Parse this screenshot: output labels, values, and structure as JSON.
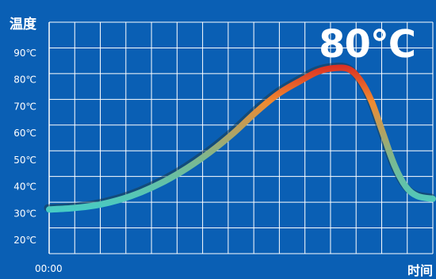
{
  "header": {
    "current_temperature": "80℃"
  },
  "chart_data": {
    "type": "line",
    "title": "",
    "xlabel": "时间",
    "ylabel": "温度",
    "x_start_label": "00:00",
    "y_ticks": [
      "20℃",
      "30℃",
      "40℃",
      "50℃",
      "60℃",
      "70℃",
      "80℃",
      "90℃"
    ],
    "y_tick_values": [
      20,
      30,
      40,
      50,
      60,
      70,
      80,
      90
    ],
    "ylim": [
      20,
      95
    ],
    "grid": true,
    "series": [
      {
        "points": [
          [
            0,
            31.5
          ],
          [
            0.06,
            32
          ],
          [
            0.12,
            33
          ],
          [
            0.18,
            35
          ],
          [
            0.24,
            38
          ],
          [
            0.3,
            42
          ],
          [
            0.36,
            47
          ],
          [
            0.42,
            53
          ],
          [
            0.48,
            60
          ],
          [
            0.54,
            68
          ],
          [
            0.6,
            75
          ],
          [
            0.66,
            80
          ],
          [
            0.7,
            83
          ],
          [
            0.74,
            84.3
          ],
          [
            0.78,
            84
          ],
          [
            0.81,
            80
          ],
          [
            0.84,
            72
          ],
          [
            0.87,
            60
          ],
          [
            0.9,
            48
          ],
          [
            0.93,
            40
          ],
          [
            0.96,
            36.5
          ],
          [
            1.0,
            35.5
          ]
        ]
      }
    ],
    "colors": {
      "background": "#0a5fb4",
      "grid": "#ffffff",
      "cool": "#2bd6e0",
      "mid": "#7bb890",
      "warm": "#f08a30",
      "hot": "#d92b22"
    }
  }
}
